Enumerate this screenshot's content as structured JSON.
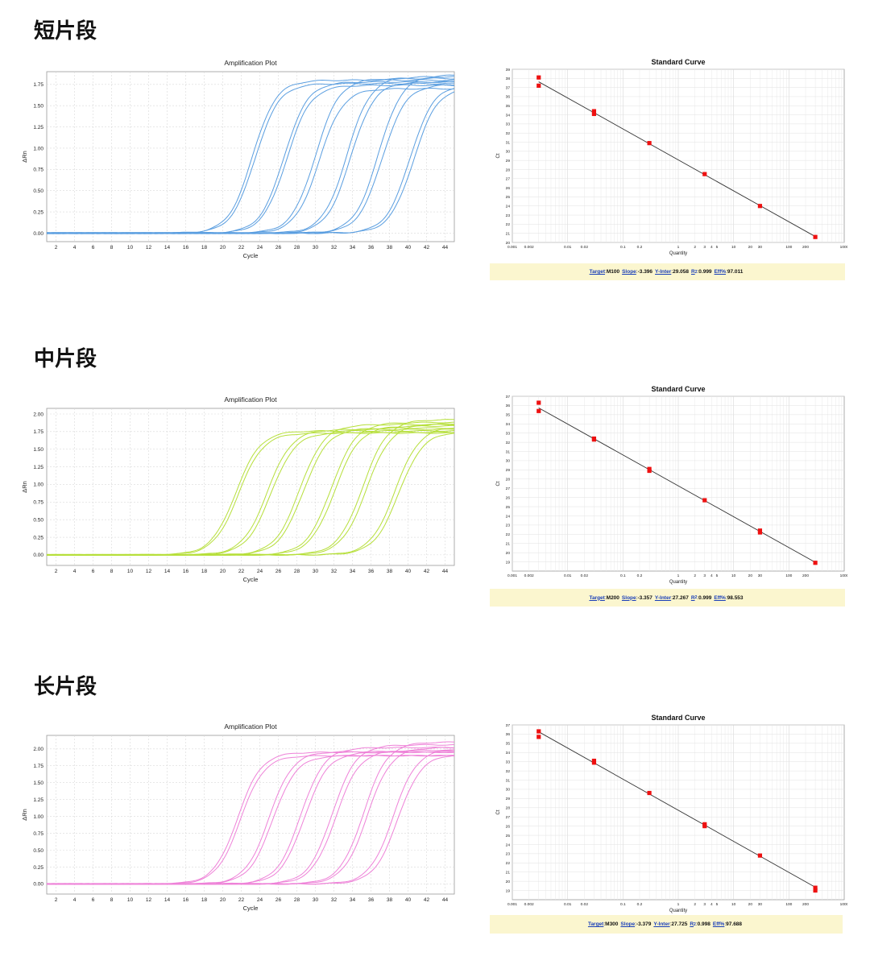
{
  "sections": [
    {
      "title": "短片段"
    },
    {
      "title": "中片段"
    },
    {
      "title": "长片段"
    }
  ],
  "chart_data": [
    {
      "type": "line",
      "title": "Amplification Plot",
      "xlabel": "Cycle",
      "ylabel": "ΔRn",
      "xlim": [
        1,
        45
      ],
      "ylim": [
        -0.1,
        1.9
      ],
      "xticks": [
        2,
        4,
        6,
        8,
        10,
        12,
        14,
        16,
        18,
        20,
        22,
        24,
        26,
        28,
        30,
        32,
        34,
        36,
        38,
        40,
        42,
        44
      ],
      "yticks": [
        0.0,
        0.25,
        0.5,
        0.75,
        1.0,
        1.25,
        1.5,
        1.75
      ],
      "ytick_labels": [
        "0.00",
        "0.25",
        "0.50",
        "0.75",
        "1.00",
        "1.25",
        "1.50",
        "1.75"
      ],
      "grid": true,
      "color": "#5a9ee0",
      "curves": [
        {
          "ct": 23.2,
          "plateau": 1.8,
          "slope": 0.78
        },
        {
          "ct": 23.5,
          "plateau": 1.76,
          "slope": 0.78
        },
        {
          "ct": 26.6,
          "plateau": 1.78,
          "slope": 0.78
        },
        {
          "ct": 26.9,
          "plateau": 1.74,
          "slope": 0.78
        },
        {
          "ct": 30.0,
          "plateau": 1.82,
          "slope": 0.78
        },
        {
          "ct": 30.4,
          "plateau": 1.7,
          "slope": 0.78
        },
        {
          "ct": 33.4,
          "plateau": 1.84,
          "slope": 0.78
        },
        {
          "ct": 33.8,
          "plateau": 1.78,
          "slope": 0.78
        },
        {
          "ct": 36.8,
          "plateau": 1.86,
          "slope": 0.78
        },
        {
          "ct": 37.2,
          "plateau": 1.75,
          "slope": 0.78
        },
        {
          "ct": 40.2,
          "plateau": 1.75,
          "slope": 0.78
        },
        {
          "ct": 40.6,
          "plateau": 1.72,
          "slope": 0.78
        }
      ]
    },
    {
      "type": "scatter",
      "title": "Standard Curve",
      "xlabel": "Quantity",
      "ylabel": "Ct",
      "xscale": "log",
      "xlim": [
        0.001,
        1000
      ],
      "ylim": [
        20,
        39
      ],
      "xticks": [
        0.001,
        0.002,
        0.01,
        0.02,
        0.1,
        0.2,
        1,
        2,
        3,
        4,
        5,
        10,
        20,
        30,
        100,
        200,
        1000
      ],
      "xtick_labels": [
        "0.001",
        "0.002",
        "0.01",
        "0.02",
        "0.1",
        "0.2",
        "1",
        "2",
        "3",
        "4",
        "5",
        "10",
        "20",
        "30",
        "100",
        "200",
        "1000"
      ],
      "yticks": [
        20,
        21,
        22,
        23,
        24,
        25,
        26,
        27,
        28,
        29,
        30,
        31,
        32,
        33,
        34,
        35,
        36,
        37,
        38,
        39
      ],
      "grid": true,
      "points": [
        {
          "x": 0.003,
          "y": 38.1
        },
        {
          "x": 0.003,
          "y": 37.2
        },
        {
          "x": 0.03,
          "y": 34.4
        },
        {
          "x": 0.03,
          "y": 34.1
        },
        {
          "x": 0.3,
          "y": 30.9
        },
        {
          "x": 3,
          "y": 27.5
        },
        {
          "x": 30,
          "y": 24.0
        },
        {
          "x": 300,
          "y": 20.6
        }
      ],
      "fit": {
        "slope": -3.396,
        "intercept": 29.058
      },
      "stats": {
        "target_label": "Target",
        "target": "M100",
        "slope_label": "Slope",
        "slope": "-3.396",
        "yinter_label": "Y-Inter",
        "yinter": "29.058",
        "r2_label": "R",
        "r2_sup": "2",
        "r2": "0.999",
        "eff_label": "Eff%",
        "eff": "97.011"
      }
    },
    {
      "type": "line",
      "title": "Amplification Plot",
      "xlabel": "Cycle",
      "ylabel": "ΔRn",
      "xlim": [
        1,
        45
      ],
      "ylim": [
        -0.15,
        2.08
      ],
      "xticks": [
        2,
        4,
        6,
        8,
        10,
        12,
        14,
        16,
        18,
        20,
        22,
        24,
        26,
        28,
        30,
        32,
        34,
        36,
        38,
        40,
        42,
        44
      ],
      "yticks": [
        0.0,
        0.25,
        0.5,
        0.75,
        1.0,
        1.25,
        1.5,
        1.75,
        2.0
      ],
      "ytick_labels": [
        "0.00",
        "0.25",
        "0.50",
        "0.75",
        "1.00",
        "1.25",
        "1.50",
        "1.75",
        "2.00"
      ],
      "grid": true,
      "color": "#b6df3a",
      "curves": [
        {
          "ct": 21.4,
          "plateau": 1.76,
          "slope": 0.75
        },
        {
          "ct": 21.7,
          "plateau": 1.73,
          "slope": 0.75
        },
        {
          "ct": 24.8,
          "plateau": 1.78,
          "slope": 0.75
        },
        {
          "ct": 25.2,
          "plateau": 1.74,
          "slope": 0.75
        },
        {
          "ct": 28.3,
          "plateau": 1.85,
          "slope": 0.75
        },
        {
          "ct": 28.7,
          "plateau": 1.8,
          "slope": 0.75
        },
        {
          "ct": 31.7,
          "plateau": 1.88,
          "slope": 0.75
        },
        {
          "ct": 32.1,
          "plateau": 1.83,
          "slope": 0.75
        },
        {
          "ct": 35.1,
          "plateau": 1.92,
          "slope": 0.75
        },
        {
          "ct": 35.5,
          "plateau": 1.86,
          "slope": 0.75
        },
        {
          "ct": 38.6,
          "plateau": 1.82,
          "slope": 0.75
        },
        {
          "ct": 39.0,
          "plateau": 1.75,
          "slope": 0.75
        }
      ]
    },
    {
      "type": "scatter",
      "title": "Standard Curve",
      "xlabel": "Quantity",
      "ylabel": "Ct",
      "xscale": "log",
      "xlim": [
        0.001,
        1000
      ],
      "ylim": [
        18,
        37
      ],
      "xticks": [
        0.001,
        0.002,
        0.01,
        0.02,
        0.1,
        0.2,
        1,
        2,
        3,
        4,
        5,
        10,
        20,
        30,
        100,
        200,
        1000
      ],
      "xtick_labels": [
        "0.001",
        "0.002",
        "0.01",
        "0.02",
        "0.1",
        "0.2",
        "1",
        "2",
        "3",
        "4",
        "5",
        "10",
        "20",
        "30",
        "100",
        "200",
        "1000"
      ],
      "yticks": [
        19,
        20,
        21,
        22,
        23,
        24,
        25,
        26,
        27,
        28,
        29,
        30,
        31,
        32,
        33,
        34,
        35,
        36,
        37
      ],
      "grid": true,
      "points": [
        {
          "x": 0.003,
          "y": 36.3
        },
        {
          "x": 0.003,
          "y": 35.4
        },
        {
          "x": 0.03,
          "y": 32.4
        },
        {
          "x": 0.03,
          "y": 32.3
        },
        {
          "x": 0.3,
          "y": 29.1
        },
        {
          "x": 0.3,
          "y": 28.9
        },
        {
          "x": 3,
          "y": 25.7
        },
        {
          "x": 30,
          "y": 22.4
        },
        {
          "x": 30,
          "y": 22.2
        },
        {
          "x": 300,
          "y": 18.9
        }
      ],
      "fit": {
        "slope": -3.357,
        "intercept": 27.267
      },
      "stats": {
        "target_label": "Target",
        "target": "M200",
        "slope_label": "Slope",
        "slope": "-3.357",
        "yinter_label": "Y-Inter",
        "yinter": "27.267",
        "r2_label": "R",
        "r2_sup": "2",
        "r2": "0.999",
        "eff_label": "Eff%",
        "eff": "98.553"
      }
    },
    {
      "type": "line",
      "title": "Amplification Plot",
      "xlabel": "Cycle",
      "ylabel": "ΔRn",
      "xlim": [
        1,
        45
      ],
      "ylim": [
        -0.15,
        2.2
      ],
      "xticks": [
        2,
        4,
        6,
        8,
        10,
        12,
        14,
        16,
        18,
        20,
        22,
        24,
        26,
        28,
        30,
        32,
        34,
        36,
        38,
        40,
        42,
        44
      ],
      "yticks": [
        0.0,
        0.25,
        0.5,
        0.75,
        1.0,
        1.25,
        1.5,
        1.75,
        2.0
      ],
      "ytick_labels": [
        "0.00",
        "0.25",
        "0.50",
        "0.75",
        "1.00",
        "1.25",
        "1.50",
        "1.75",
        "2.00"
      ],
      "grid": true,
      "color": "#ee82d8",
      "curves": [
        {
          "ct": 21.6,
          "plateau": 1.95,
          "slope": 0.78
        },
        {
          "ct": 21.9,
          "plateau": 1.9,
          "slope": 0.78
        },
        {
          "ct": 25.0,
          "plateau": 1.96,
          "slope": 0.78
        },
        {
          "ct": 25.4,
          "plateau": 1.9,
          "slope": 0.78
        },
        {
          "ct": 28.4,
          "plateau": 2.02,
          "slope": 0.78
        },
        {
          "ct": 28.8,
          "plateau": 1.95,
          "slope": 0.78
        },
        {
          "ct": 31.8,
          "plateau": 2.06,
          "slope": 0.78
        },
        {
          "ct": 32.2,
          "plateau": 1.98,
          "slope": 0.78
        },
        {
          "ct": 35.2,
          "plateau": 2.1,
          "slope": 0.78
        },
        {
          "ct": 35.6,
          "plateau": 2.02,
          "slope": 0.78
        },
        {
          "ct": 38.4,
          "plateau": 2.0,
          "slope": 0.78
        },
        {
          "ct": 38.9,
          "plateau": 1.92,
          "slope": 0.78
        }
      ]
    },
    {
      "type": "scatter",
      "title": "Standard Curve",
      "xlabel": "Quantity",
      "ylabel": "Ct",
      "xscale": "log",
      "xlim": [
        0.001,
        1000
      ],
      "ylim": [
        18,
        37
      ],
      "xticks": [
        0.001,
        0.002,
        0.01,
        0.02,
        0.1,
        0.2,
        1,
        2,
        3,
        4,
        5,
        10,
        20,
        30,
        100,
        200,
        1000
      ],
      "xtick_labels": [
        "0.001",
        "0.002",
        "0.01",
        "0.02",
        "0.1",
        "0.2",
        "1",
        "2",
        "3",
        "4",
        "5",
        "10",
        "20",
        "30",
        "100",
        "200",
        "1000"
      ],
      "yticks": [
        19,
        20,
        21,
        22,
        23,
        24,
        25,
        26,
        27,
        28,
        29,
        30,
        31,
        32,
        33,
        34,
        35,
        36,
        37
      ],
      "grid": true,
      "points": [
        {
          "x": 0.003,
          "y": 36.3
        },
        {
          "x": 0.003,
          "y": 35.7
        },
        {
          "x": 0.03,
          "y": 33.1
        },
        {
          "x": 0.03,
          "y": 32.9
        },
        {
          "x": 0.3,
          "y": 29.6
        },
        {
          "x": 3,
          "y": 26.2
        },
        {
          "x": 3,
          "y": 26.0
        },
        {
          "x": 30,
          "y": 22.8
        },
        {
          "x": 300,
          "y": 19.3
        },
        {
          "x": 300,
          "y": 19.0
        }
      ],
      "fit": {
        "slope": -3.379,
        "intercept": 27.725
      },
      "stats": {
        "target_label": "Target",
        "target": "M300",
        "slope_label": "Slope",
        "slope": "-3.379",
        "yinter_label": "Y-Inter",
        "yinter": "27.725",
        "r2_label": "R",
        "r2_sup": "2",
        "r2": "0.998",
        "eff_label": "Eff%",
        "eff": "97.688"
      }
    }
  ]
}
